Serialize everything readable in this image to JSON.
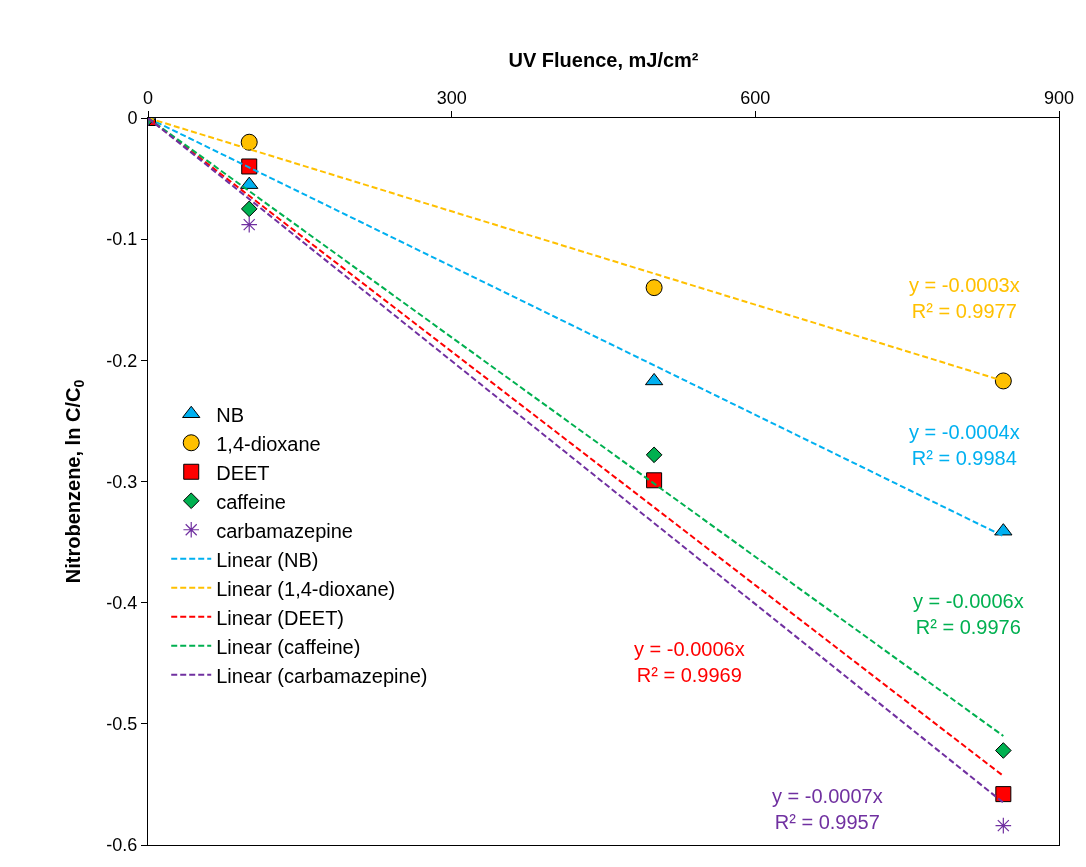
{
  "chart_data": {
    "type": "scatter",
    "xlabel": "UV Fluence, mJ/cm²",
    "ylabel": "Nitrobenzene, ln C/C$_{0}$",
    "xlim": [
      0,
      900
    ],
    "xticks": [
      0,
      300,
      600,
      900
    ],
    "ylim": [
      -0.6,
      0
    ],
    "yticks": [
      0,
      -0.1,
      -0.2,
      -0.3,
      -0.4,
      -0.5,
      -0.6
    ],
    "grid": false,
    "legend": "left",
    "series": [
      {
        "name": "NB",
        "marker": "triangle",
        "color": "#00b0f0",
        "x": [
          100,
          500,
          845
        ],
        "values": [
          -0.055,
          -0.217,
          -0.341
        ]
      },
      {
        "name": "1,4-dioxane",
        "marker": "circle",
        "color": "#ffc000",
        "x": [
          100,
          500,
          845
        ],
        "values": [
          -0.02,
          -0.14,
          -0.217
        ]
      },
      {
        "name": "DEET",
        "marker": "square",
        "color": "#ff0000",
        "x": [
          0,
          100,
          500,
          845
        ],
        "values": [
          0,
          -0.04,
          -0.299,
          -0.558
        ]
      },
      {
        "name": "caffeine",
        "marker": "diamond",
        "color": "#00b050",
        "x": [
          0,
          100,
          500,
          845
        ],
        "values": [
          0,
          -0.075,
          -0.278,
          -0.522
        ]
      },
      {
        "name": "carbamazepine",
        "marker": "cross",
        "color": "#7030a0",
        "x": [
          0,
          100,
          500,
          845
        ],
        "values": [
          0,
          -0.088,
          null,
          -0.584
        ]
      },
      {
        "name": "Linear (NB)",
        "type": "line",
        "line_style": "dashed",
        "marker": "none",
        "color": "#00b0f0",
        "x": [
          0,
          845
        ],
        "values": [
          0,
          -0.345
        ]
      },
      {
        "name": "Linear (1,4-dioxane)",
        "type": "line",
        "line_style": "dashed",
        "marker": "none",
        "color": "#ffc000",
        "x": [
          0,
          845
        ],
        "values": [
          0,
          -0.217
        ]
      },
      {
        "name": "Linear (DEET)",
        "type": "line",
        "line_style": "dashed",
        "marker": "none",
        "color": "#ff0000",
        "x": [
          0,
          845
        ],
        "values": [
          0,
          -0.543
        ]
      },
      {
        "name": "Linear (caffeine)",
        "type": "line",
        "line_style": "dashed",
        "marker": "none",
        "color": "#00b050",
        "x": [
          0,
          845
        ],
        "values": [
          0,
          -0.51
        ]
      },
      {
        "name": "Linear (carbamazepine)",
        "type": "line",
        "line_style": "dashed",
        "marker": "none",
        "color": "#7030a0",
        "x": [
          0,
          845
        ],
        "values": [
          0,
          -0.565
        ]
      }
    ],
    "annotations": [
      "y = -0.0004x\nR² = 0.9984",
      "y = -0.0003x\nR² = 0.9977",
      "y = -0.0006x\nR² = 0.9969",
      "y = -0.0006x\nR² = 0.9976",
      "y = -0.0007x\nR² = 0.9957"
    ]
  }
}
